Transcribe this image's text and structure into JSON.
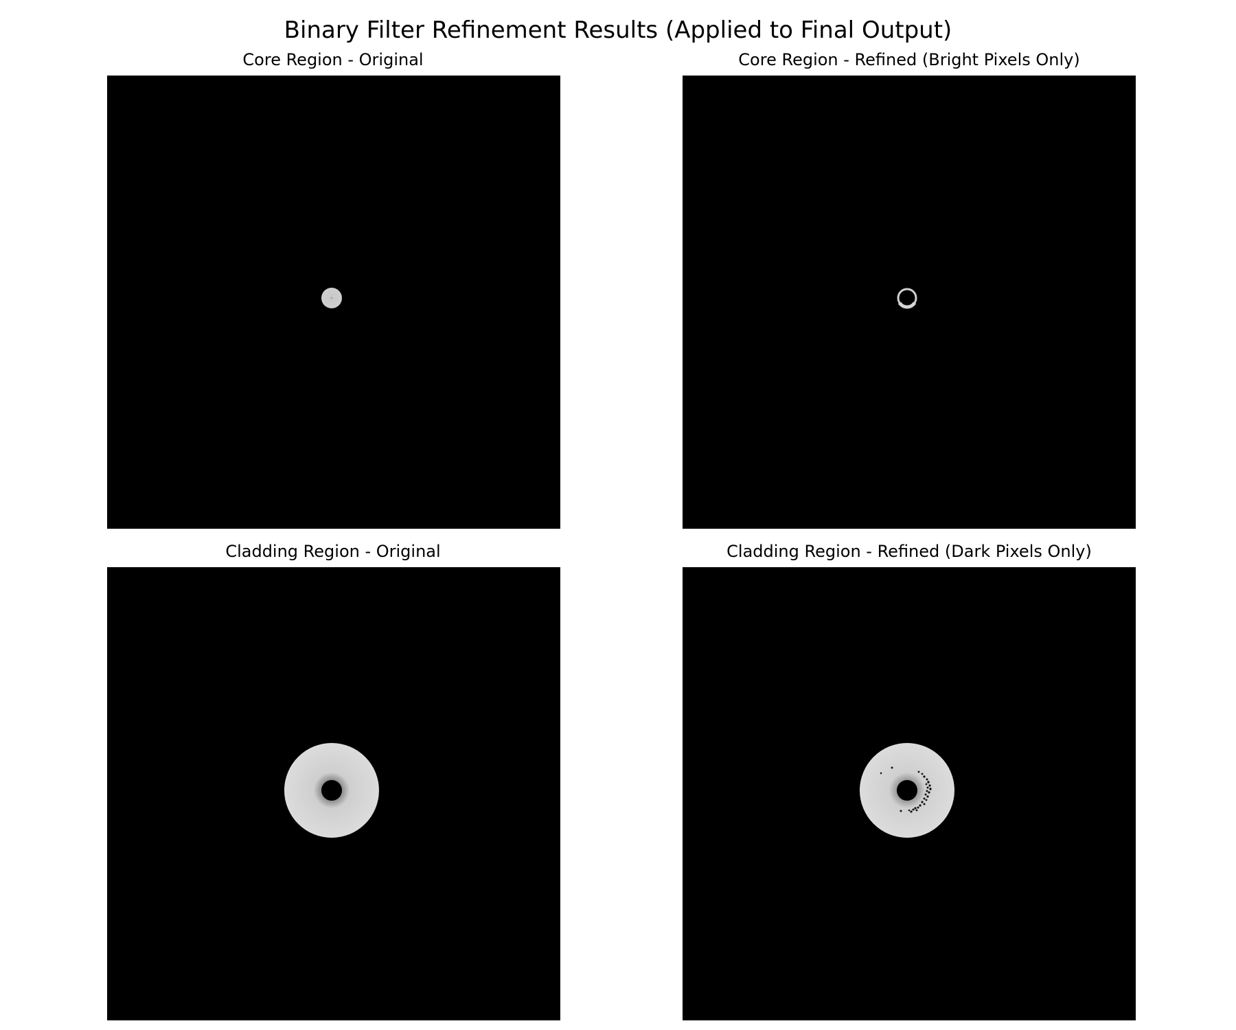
{
  "figure": {
    "title": "Binary Filter Refinement Results (Applied to Final Output)"
  },
  "panels": [
    {
      "title": "Core Region - Original",
      "position": "top-left",
      "content": "bright filled core disk on black"
    },
    {
      "title": "Core Region - Refined (Bright Pixels Only)",
      "position": "top-right",
      "content": "thin bright ring on black"
    },
    {
      "title": "Cladding Region - Original",
      "position": "bottom-left",
      "content": "bright annulus with dark center on black"
    },
    {
      "title": "Cladding Region - Refined (Dark Pixels Only)",
      "position": "bottom-right",
      "content": "bright annulus with scattered dark specks"
    }
  ],
  "colors": {
    "background": "#000000",
    "region_fill": "#d9d9d9",
    "page": "#ffffff"
  }
}
